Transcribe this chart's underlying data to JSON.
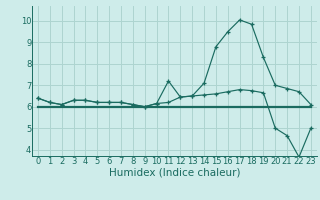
{
  "xlabel": "Humidex (Indice chaleur)",
  "background_color": "#ceecea",
  "grid_color": "#add4d0",
  "line_color": "#1a6b60",
  "xlim": [
    -0.5,
    23.5
  ],
  "ylim": [
    3.7,
    10.7
  ],
  "yticks": [
    4,
    5,
    6,
    7,
    8,
    9,
    10
  ],
  "xticks": [
    0,
    1,
    2,
    3,
    4,
    5,
    6,
    7,
    8,
    9,
    10,
    11,
    12,
    13,
    14,
    15,
    16,
    17,
    18,
    19,
    20,
    21,
    22,
    23
  ],
  "x_data": [
    0,
    1,
    2,
    3,
    4,
    5,
    6,
    7,
    8,
    9,
    10,
    11,
    12,
    13,
    14,
    15,
    16,
    17,
    18,
    19,
    20,
    21,
    22,
    23
  ],
  "y_main": [
    6.4,
    6.2,
    6.1,
    6.3,
    6.3,
    6.2,
    6.2,
    6.2,
    6.1,
    6.0,
    6.15,
    7.2,
    6.45,
    6.5,
    7.1,
    8.8,
    9.5,
    10.05,
    9.85,
    8.3,
    7.0,
    6.85,
    6.7,
    6.1
  ],
  "y_flat": [
    6.0,
    6.0,
    6.0,
    6.0,
    6.0,
    6.0,
    6.0,
    6.0,
    6.0,
    6.0,
    6.0,
    6.0,
    6.0,
    6.0,
    6.0,
    6.0,
    6.0,
    6.0,
    6.0,
    6.0,
    6.0,
    6.0,
    6.0,
    6.0
  ],
  "y_lower": [
    6.4,
    6.2,
    6.1,
    6.3,
    6.3,
    6.2,
    6.2,
    6.2,
    6.1,
    6.0,
    6.15,
    6.2,
    6.45,
    6.5,
    6.55,
    6.6,
    6.7,
    6.8,
    6.75,
    6.65,
    5.0,
    4.65,
    3.65,
    5.0
  ],
  "fontsize_ticks": 6,
  "fontsize_label": 7.5
}
